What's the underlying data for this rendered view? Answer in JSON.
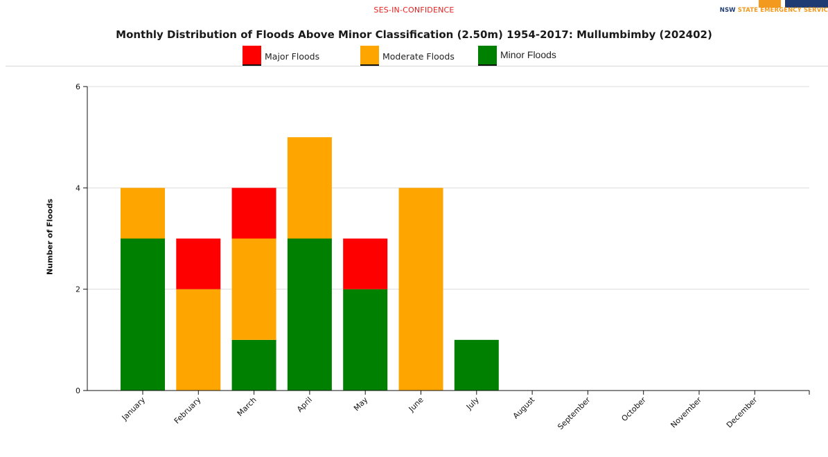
{
  "header": {
    "confidential": "SES-IN-CONFIDENCE",
    "logo_text_prefix": "NSW ",
    "logo_text_accent": "STATE EMERGENCY SERVIC"
  },
  "chart_data": {
    "type": "bar",
    "stacked": true,
    "title": "Monthly Distribution of Floods Above Minor Classification (2.50m) 1954-2017: Mullumbimby (202402)",
    "ylabel": "Number of Floods",
    "xlabel": "",
    "ylim": [
      0,
      6
    ],
    "yticks": [
      0,
      2,
      4,
      6
    ],
    "grid": true,
    "legend_position": "top-center",
    "categories": [
      "January",
      "February",
      "March",
      "April",
      "May",
      "June",
      "July",
      "August",
      "September",
      "October",
      "November",
      "December"
    ],
    "series": [
      {
        "name": "Minor Floods",
        "color": "#008000",
        "values": [
          3,
          0,
          1,
          3,
          2,
          0,
          1,
          0,
          0,
          0,
          0,
          0
        ]
      },
      {
        "name": "Moderate Floods",
        "color": "#ffa500",
        "values": [
          1,
          2,
          2,
          2,
          0,
          4,
          0,
          0,
          0,
          0,
          0,
          0
        ]
      },
      {
        "name": "Major Floods",
        "color": "#ff0000",
        "values": [
          0,
          1,
          1,
          0,
          1,
          0,
          0,
          0,
          0,
          0,
          0,
          0
        ]
      }
    ],
    "legend": [
      {
        "name": "Major Floods",
        "color": "#ff0000"
      },
      {
        "name": "Moderate Floods",
        "color": "#ffa500"
      },
      {
        "name": "Minor Floods",
        "color": "#008000"
      }
    ]
  }
}
